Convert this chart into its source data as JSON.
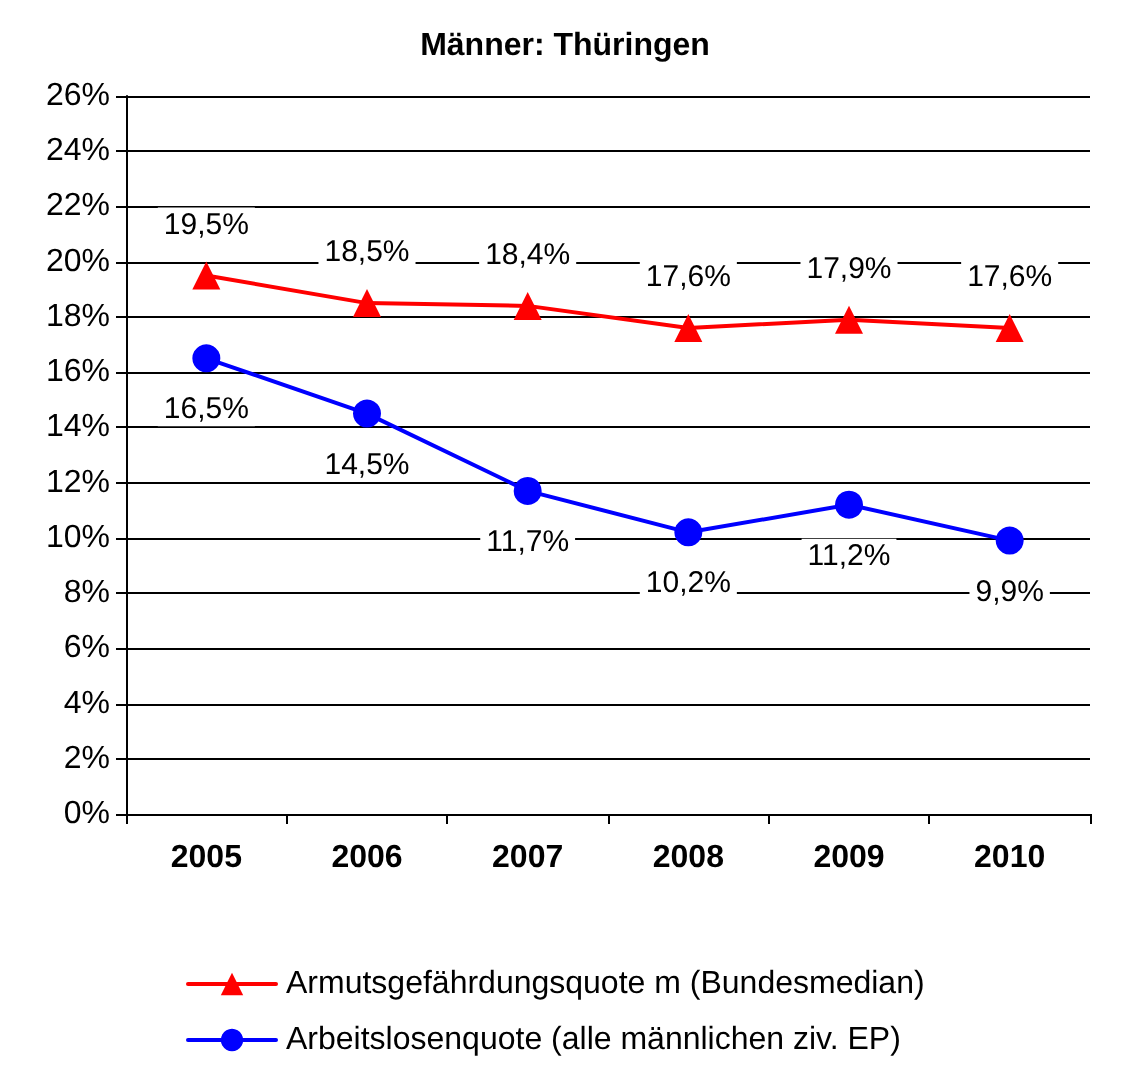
{
  "chart_data": {
    "type": "line",
    "title": "Männer: Thüringen",
    "categories": [
      "2005",
      "2006",
      "2007",
      "2008",
      "2009",
      "2010"
    ],
    "series": [
      {
        "name": "Armutsgefährdungsquote m (Bundesmedian)",
        "color": "#ff0000",
        "marker": "triangle",
        "values": [
          19.5,
          18.5,
          18.4,
          17.6,
          17.9,
          17.6
        ],
        "value_labels": [
          "19,5%",
          "18,5%",
          "18,4%",
          "17,6%",
          "17,9%",
          "17,6%"
        ]
      },
      {
        "name": "Arbeitslosenquote (alle männlichen ziv. EP)",
        "color": "#0000ff",
        "marker": "circle",
        "values": [
          16.5,
          14.5,
          11.7,
          10.2,
          11.2,
          9.9
        ],
        "value_labels": [
          "16,5%",
          "14,5%",
          "11,7%",
          "10,2%",
          "11,2%",
          "9,9%"
        ]
      }
    ],
    "ylim": [
      0,
      26
    ],
    "yticks": [
      {
        "value": 0,
        "label": "0%"
      },
      {
        "value": 2,
        "label": "2%"
      },
      {
        "value": 4,
        "label": "4%"
      },
      {
        "value": 6,
        "label": "6%"
      },
      {
        "value": 8,
        "label": "8%"
      },
      {
        "value": 10,
        "label": "10%"
      },
      {
        "value": 12,
        "label": "12%"
      },
      {
        "value": 14,
        "label": "14%"
      },
      {
        "value": 16,
        "label": "16%"
      },
      {
        "value": 18,
        "label": "18%"
      },
      {
        "value": 20,
        "label": "20%"
      },
      {
        "value": 22,
        "label": "22%"
      },
      {
        "value": 24,
        "label": "24%"
      },
      {
        "value": 26,
        "label": "26%"
      }
    ],
    "grid": "y",
    "legend": "bottom",
    "line_style": "solid"
  }
}
